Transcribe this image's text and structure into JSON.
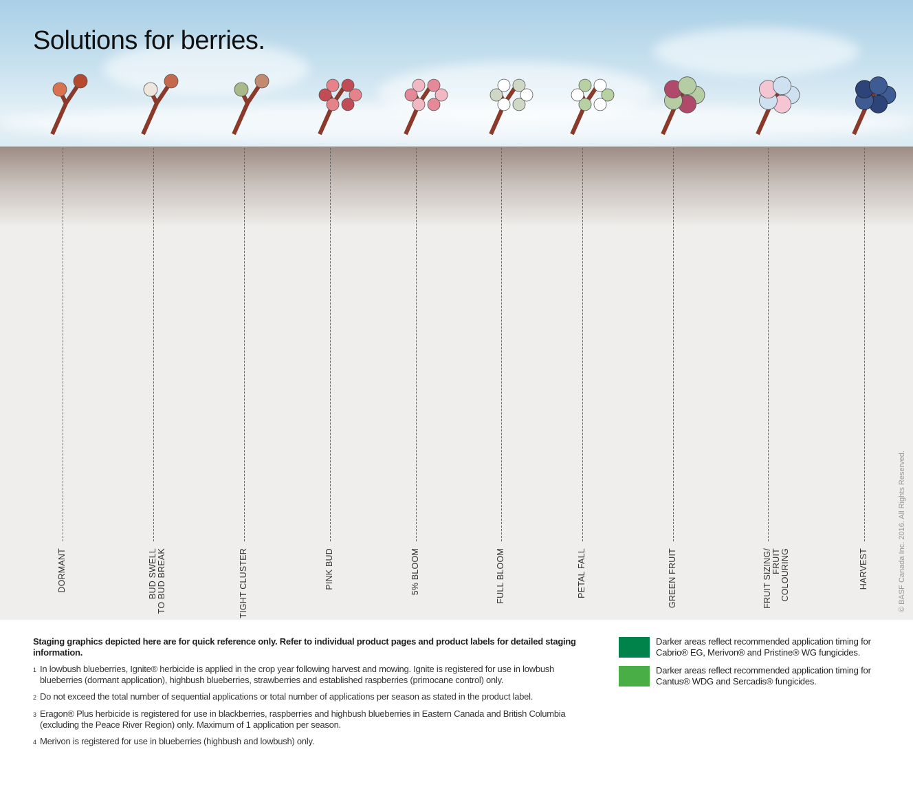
{
  "title": "Solutions for berries.",
  "stages": [
    {
      "label": "DORMANT",
      "icon": "dormant-bud-icon",
      "colors": [
        "#d9734f",
        "#b5482f"
      ]
    },
    {
      "label": "BUD SWELL\nTO BUD BREAK",
      "icon": "bud-swell-icon",
      "colors": [
        "#eee6dc",
        "#c36a4c"
      ]
    },
    {
      "label": "TIGHT CLUSTER",
      "icon": "tight-cluster-icon",
      "colors": [
        "#a8b98a",
        "#c28a6e"
      ]
    },
    {
      "label": "PINK BUD",
      "icon": "pink-bud-icon",
      "colors": [
        "#e6828a",
        "#c04c56"
      ]
    },
    {
      "label": "5% BLOOM",
      "icon": "five-percent-bloom-icon",
      "colors": [
        "#f1b8c4",
        "#e58898"
      ]
    },
    {
      "label": "FULL BLOOM",
      "icon": "full-bloom-icon",
      "colors": [
        "#ffffff",
        "#cfd8c4"
      ]
    },
    {
      "label": "PETAL FALL",
      "icon": "petal-fall-icon",
      "colors": [
        "#b7d1a3",
        "#ffffff"
      ]
    },
    {
      "label": "GREEN FRUIT",
      "icon": "green-fruit-icon",
      "colors": [
        "#b6cca3",
        "#b04a6a"
      ]
    },
    {
      "label": "FRUIT SIZING/\nFRUIT\nCOLOURING",
      "icon": "fruit-sizing-icon",
      "colors": [
        "#cfe1f0",
        "#f4c5d3"
      ]
    },
    {
      "label": "HARVEST",
      "icon": "harvest-berries-icon",
      "colors": [
        "#3e5c93",
        "#2d4478"
      ]
    }
  ],
  "copyright": "© BASF Canada Inc. 2016. All Rights Reserved.",
  "notes": {
    "lead": "Staging graphics depicted here are for quick reference only. Refer to individual product pages and product labels for detailed staging information.",
    "footnotes": [
      {
        "num": "1",
        "text": "In lowbush blueberries, Ignite® herbicide is applied in the crop year following harvest and mowing. Ignite is registered for use in lowbush blueberries (dormant application), highbush blueberries, strawberries and established raspberries (primocane control) only."
      },
      {
        "num": "2",
        "text": "Do not exceed the total number of sequential applications or total number of applications per season as stated in the product label."
      },
      {
        "num": "3",
        "text": "Eragon® Plus herbicide is registered for use in blackberries, raspberries and highbush blueberries in Eastern Canada and British Columbia (excluding the Peace River Region) only. Maximum of 1 application per season."
      },
      {
        "num": "4",
        "text": "Merivon is registered for use in blueberries (highbush and lowbush) only."
      }
    ]
  },
  "legend": [
    {
      "color": "#00834a",
      "text": "Darker areas reflect recommended application timing for Cabrio® EG, Merivon® and Pristine® WG fungicides."
    },
    {
      "color": "#4aae47",
      "text": "Darker areas reflect recommended application timing for Cantus® WDG and Sercadis® fungicides."
    }
  ]
}
